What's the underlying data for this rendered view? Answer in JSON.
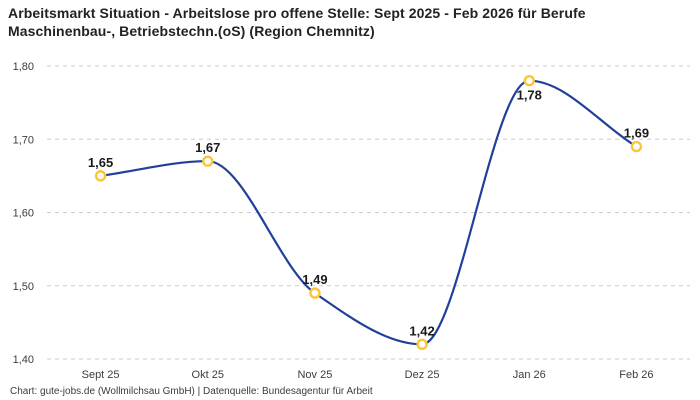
{
  "chart_data": {
    "type": "line",
    "title": "Arbeitsmarkt Situation - Arbeitslose pro offene Stelle: Sept 2025 - Feb 2026 für Berufe Maschinenbau-, Betriebstechn.(oS) (Region Chemnitz)",
    "categories": [
      "Sept 25",
      "Okt 25",
      "Nov 25",
      "Dez 25",
      "Jan 26",
      "Feb 26"
    ],
    "values": [
      1.65,
      1.67,
      1.49,
      1.42,
      1.78,
      1.69
    ],
    "point_labels": [
      "1,65",
      "1,67",
      "1,49",
      "1,42",
      "1,78",
      "1,69"
    ],
    "label_positions": [
      "above",
      "above",
      "above",
      "above",
      "below",
      "above"
    ],
    "y_ticks": [
      {
        "label": "1,80",
        "value": 1.8
      },
      {
        "label": "1,70",
        "value": 1.7
      },
      {
        "label": "1,60",
        "value": 1.6
      },
      {
        "label": "1,50",
        "value": 1.5
      },
      {
        "label": "1,40",
        "value": 1.4
      }
    ],
    "ylim": [
      1.4,
      1.8
    ],
    "xlabel": "",
    "ylabel": "",
    "grid": "horizontal-dashed",
    "legend": "none",
    "line_interpolation": "smooth-monotone",
    "colors": {
      "line": "#21409a",
      "marker_ring": "#fbc535",
      "marker_fill": "#ffffff",
      "grid": "#cccccc",
      "title_text": "#222222",
      "axis_text": "#3c3c3c",
      "point_label_text": "#1a1a1a",
      "background": "#ffffff"
    }
  },
  "footer": {
    "credit": "Chart: gute-jobs.de (Wollmilchsau GmbH) | Datenquelle: Bundesagentur für Arbeit"
  }
}
